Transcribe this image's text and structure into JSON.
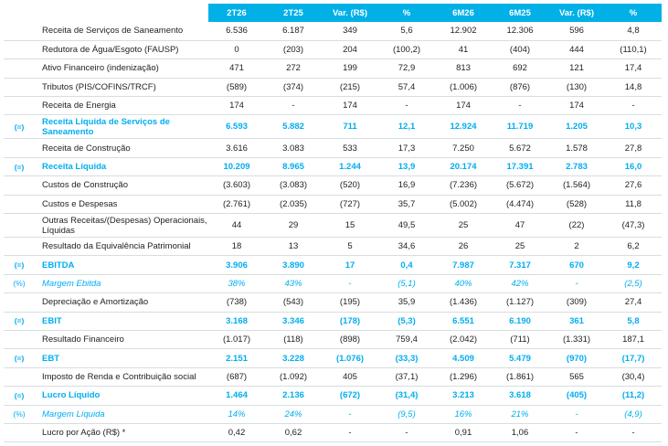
{
  "headers": [
    "2T26",
    "2T25",
    "Var. (R$)",
    "%",
    "6M26",
    "6M25",
    "Var. (R$)",
    "%"
  ],
  "rows": [
    {
      "prefix": "",
      "label": "Receita de Serviços de Saneamento",
      "values": [
        "6.536",
        "6.187",
        "349",
        "5,6",
        "12.902",
        "12.306",
        "596",
        "4,8"
      ],
      "style": "normal"
    },
    {
      "prefix": "",
      "label": "Redutora de Água/Esgoto (FAUSP)",
      "values": [
        "0",
        "(203)",
        "204",
        "(100,2)",
        "41",
        "(404)",
        "444",
        "(110,1)"
      ],
      "style": "normal"
    },
    {
      "prefix": "",
      "label": "Ativo Financeiro (indenização)",
      "values": [
        "471",
        "272",
        "199",
        "72,9",
        "813",
        "692",
        "121",
        "17,4"
      ],
      "style": "normal"
    },
    {
      "prefix": "",
      "label": "Tributos (PIS/COFINS/TRCF)",
      "values": [
        "(589)",
        "(374)",
        "(215)",
        "57,4",
        "(1.006)",
        "(876)",
        "(130)",
        "14,8"
      ],
      "style": "normal"
    },
    {
      "prefix": "",
      "label": "Receita de Energia",
      "values": [
        "174",
        "-",
        "174",
        "-",
        "174",
        "-",
        "174",
        "-"
      ],
      "style": "normal"
    },
    {
      "prefix": "(=)",
      "label": "Receita Líquida de Serviços de Saneamento",
      "values": [
        "6.593",
        "5.882",
        "711",
        "12,1",
        "12.924",
        "11.719",
        "1.205",
        "10,3"
      ],
      "style": "highlight",
      "tall": true
    },
    {
      "prefix": "",
      "label": "Receita de Construção",
      "values": [
        "3.616",
        "3.083",
        "533",
        "17,3",
        "7.250",
        "5.672",
        "1.578",
        "27,8"
      ],
      "style": "normal"
    },
    {
      "prefix": "(=)",
      "label": "Receita Líquida",
      "values": [
        "10.209",
        "8.965",
        "1.244",
        "13,9",
        "20.174",
        "17.391",
        "2.783",
        "16,0"
      ],
      "style": "highlight"
    },
    {
      "prefix": "",
      "label": "Custos de Construção",
      "values": [
        "(3.603)",
        "(3.083)",
        "(520)",
        "16,9",
        "(7.236)",
        "(5.672)",
        "(1.564)",
        "27,6"
      ],
      "style": "normal"
    },
    {
      "prefix": "",
      "label": "Custos e Despesas",
      "values": [
        "(2.761)",
        "(2.035)",
        "(727)",
        "35,7",
        "(5.002)",
        "(4.474)",
        "(528)",
        "11,8"
      ],
      "style": "normal"
    },
    {
      "prefix": "",
      "label": "Outras Receitas/(Despesas) Operacionais, Líquidas",
      "values": [
        "44",
        "29",
        "15",
        "49,5",
        "25",
        "47",
        "(22)",
        "(47,3)"
      ],
      "style": "normal",
      "tall": true
    },
    {
      "prefix": "",
      "label": "Resultado da Equivalência Patrimonial",
      "values": [
        "18",
        "13",
        "5",
        "34,6",
        "26",
        "25",
        "2",
        "6,2"
      ],
      "style": "normal"
    },
    {
      "prefix": "(=)",
      "label": "EBITDA",
      "values": [
        "3.906",
        "3.890",
        "17",
        "0,4",
        "7.987",
        "7.317",
        "670",
        "9,2"
      ],
      "style": "highlight"
    },
    {
      "prefix": "(%)",
      "label": "Margem Ebitda",
      "values": [
        "38%",
        "43%",
        "-",
        "(5,1)",
        "40%",
        "42%",
        "-",
        "(2,5)"
      ],
      "style": "percent"
    },
    {
      "prefix": "",
      "label": "Depreciação e Amortização",
      "values": [
        "(738)",
        "(543)",
        "(195)",
        "35,9",
        "(1.436)",
        "(1.127)",
        "(309)",
        "27,4"
      ],
      "style": "normal"
    },
    {
      "prefix": "(=)",
      "label": "EBIT",
      "values": [
        "3.168",
        "3.346",
        "(178)",
        "(5,3)",
        "6.551",
        "6.190",
        "361",
        "5,8"
      ],
      "style": "highlight"
    },
    {
      "prefix": "",
      "label": "Resultado Financeiro",
      "values": [
        "(1.017)",
        "(118)",
        "(898)",
        "759,4",
        "(2.042)",
        "(711)",
        "(1.331)",
        "187,1"
      ],
      "style": "normal"
    },
    {
      "prefix": "(=)",
      "label": "EBT",
      "values": [
        "2.151",
        "3.228",
        "(1.076)",
        "(33,3)",
        "4.509",
        "5.479",
        "(970)",
        "(17,7)"
      ],
      "style": "highlight"
    },
    {
      "prefix": "",
      "label": "Imposto de Renda e Contribuição social",
      "values": [
        "(687)",
        "(1.092)",
        "405",
        "(37,1)",
        "(1.296)",
        "(1.861)",
        "565",
        "(30,4)"
      ],
      "style": "normal"
    },
    {
      "prefix": "(=)",
      "label": "Lucro Líquido",
      "values": [
        "1.464",
        "2.136",
        "(672)",
        "(31,4)",
        "3.213",
        "3.618",
        "(405)",
        "(11,2)"
      ],
      "style": "highlight"
    },
    {
      "prefix": "(%)",
      "label": "Margem Líquida",
      "values": [
        "14%",
        "24%",
        "-",
        "(9,5)",
        "16%",
        "21%",
        "-",
        "(4,9)"
      ],
      "style": "percent"
    },
    {
      "prefix": "",
      "label": "Lucro por Ação (R$) *",
      "values": [
        "0,42",
        "0,62",
        "-",
        "-",
        "0,91",
        "1,06",
        "-",
        "-"
      ],
      "style": "normal"
    }
  ],
  "colors": {
    "header_bg": "#00b0e6",
    "highlight_text": "#00aeef",
    "body_text": "#222222",
    "row_rule": "#d7dde0"
  }
}
